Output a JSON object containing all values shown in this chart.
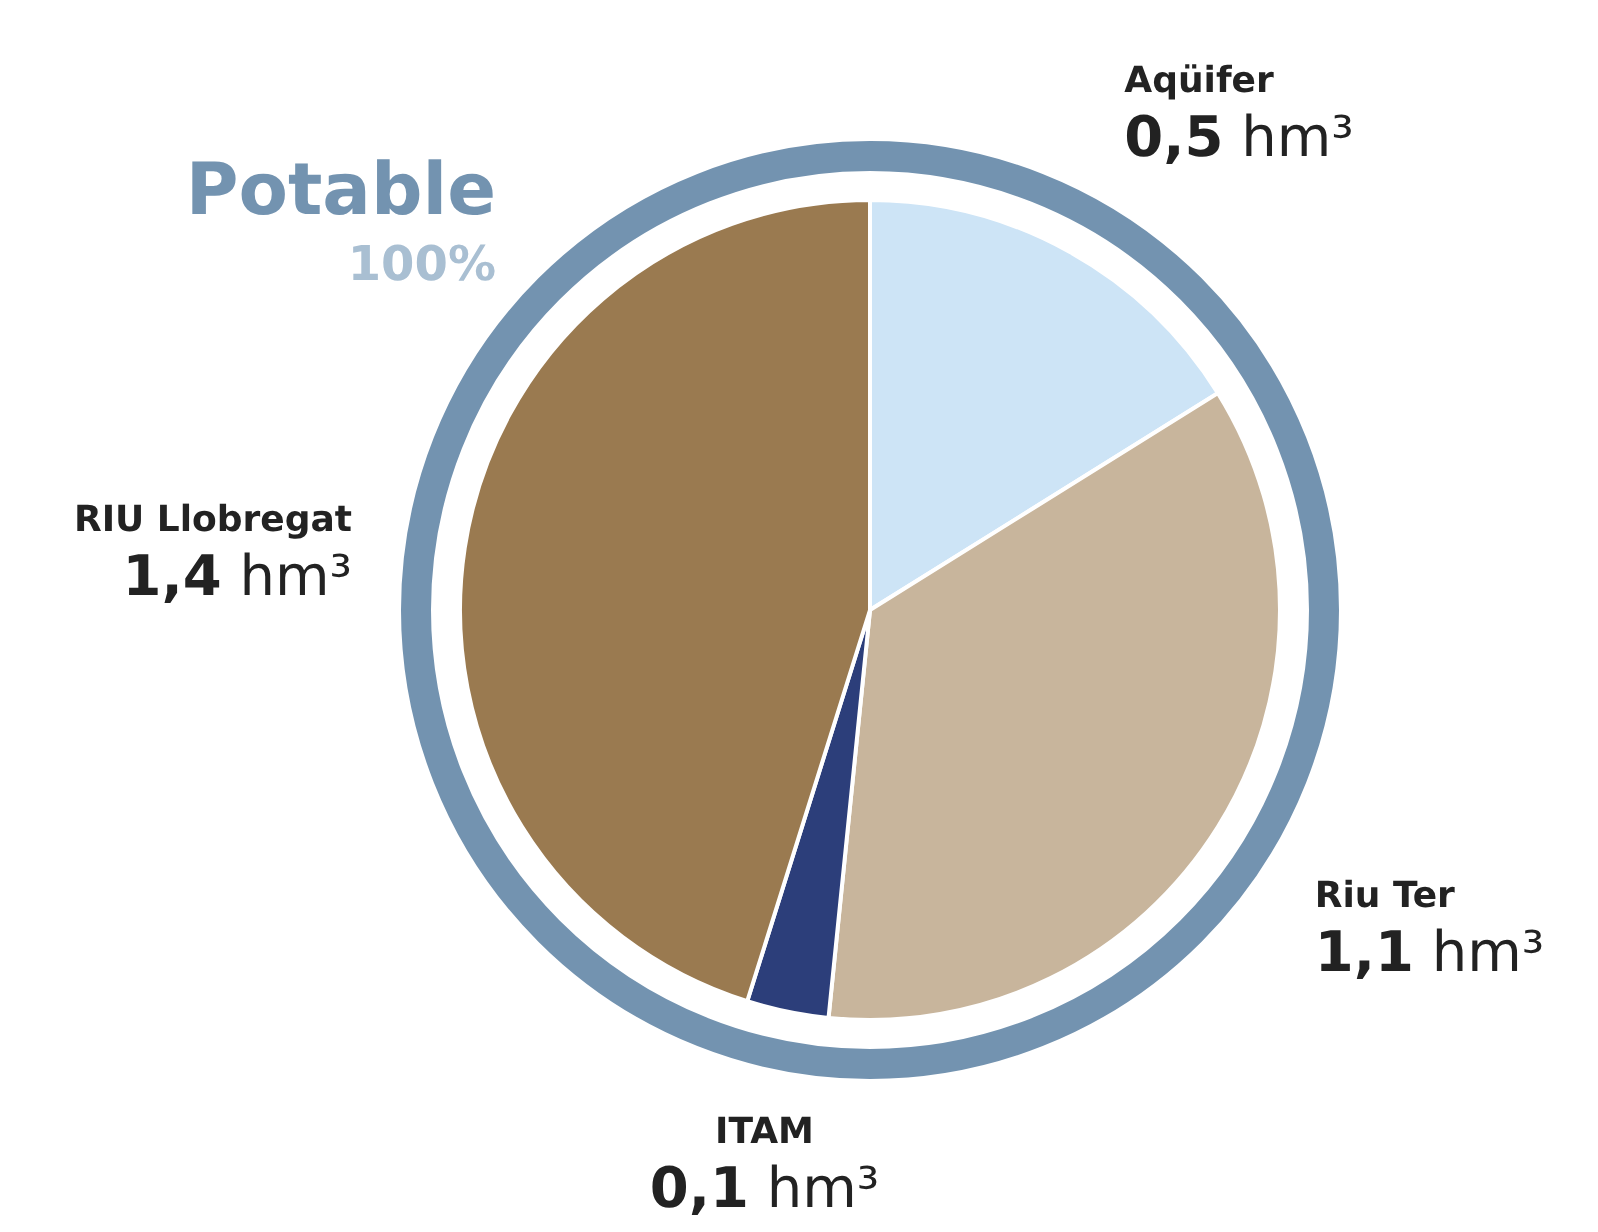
{
  "chart_data": {
    "type": "pie",
    "title": "Potable",
    "subtitle": "100%",
    "categories": [
      "Aqüifer",
      "Riu Ter",
      "ITAM",
      "RIU Llobregat"
    ],
    "values": [
      0.5,
      1.1,
      0.1,
      1.4
    ],
    "value_labels": [
      "0,5 hm³",
      "1,1 hm³",
      "0,1 hm³",
      "1,4 hm³"
    ],
    "colors": [
      "#cde4f6",
      "#c8b59c",
      "#2c3e7a",
      "#9a7a50"
    ]
  }
}
